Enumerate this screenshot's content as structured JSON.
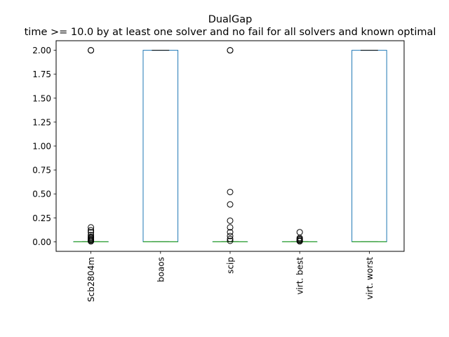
{
  "chart_data": {
    "type": "box",
    "title": "DualGap",
    "subtitle": "time >= 10.0 by at least one solver and no fail for all solvers and known optimal",
    "xlabel": "",
    "ylabel": "",
    "ylim": [
      -0.1,
      2.1
    ],
    "yticks": [
      0.0,
      0.25,
      0.5,
      0.75,
      1.0,
      1.25,
      1.5,
      1.75,
      2.0
    ],
    "ytick_labels": [
      "0.00",
      "0.25",
      "0.50",
      "0.75",
      "1.00",
      "1.25",
      "1.50",
      "1.75",
      "2.00"
    ],
    "grid": false,
    "categories": [
      "Scb2804m",
      "boaos",
      "scip",
      "virt. best",
      "virt. worst"
    ],
    "boxes": [
      {
        "name": "Scb2804m",
        "q1": 0.0,
        "median": 0.0,
        "q3": 0.0,
        "whisker_low": 0.0,
        "whisker_high": 0.0,
        "outliers": [
          2.0,
          2.0,
          0.15,
          0.12,
          0.1,
          0.07,
          0.05,
          0.04,
          0.03,
          0.02,
          0.01,
          0.005
        ]
      },
      {
        "name": "boaos",
        "q1": 0.0,
        "median": 0.0,
        "q3": 2.0,
        "whisker_low": 0.0,
        "whisker_high": 2.0,
        "outliers": []
      },
      {
        "name": "scip",
        "q1": 0.0,
        "median": 0.0,
        "q3": 0.0,
        "whisker_low": 0.0,
        "whisker_high": 0.0,
        "outliers": [
          2.0,
          2.0,
          0.52,
          0.39,
          0.22,
          0.15,
          0.1,
          0.06,
          0.03,
          0.01
        ]
      },
      {
        "name": "virt. best",
        "q1": 0.0,
        "median": 0.0,
        "q3": 0.0,
        "whisker_low": 0.0,
        "whisker_high": 0.0,
        "outliers": [
          0.1,
          0.04,
          0.03,
          0.02,
          0.01,
          0.005
        ]
      },
      {
        "name": "virt. worst",
        "q1": 0.0,
        "median": 0.0,
        "q3": 2.0,
        "whisker_low": 0.0,
        "whisker_high": 2.0,
        "outliers": []
      }
    ],
    "colors": {
      "box": "#1f77b4",
      "median": "#2ca02c",
      "whisker_cap": "#000000",
      "outlier": "#000000"
    }
  }
}
